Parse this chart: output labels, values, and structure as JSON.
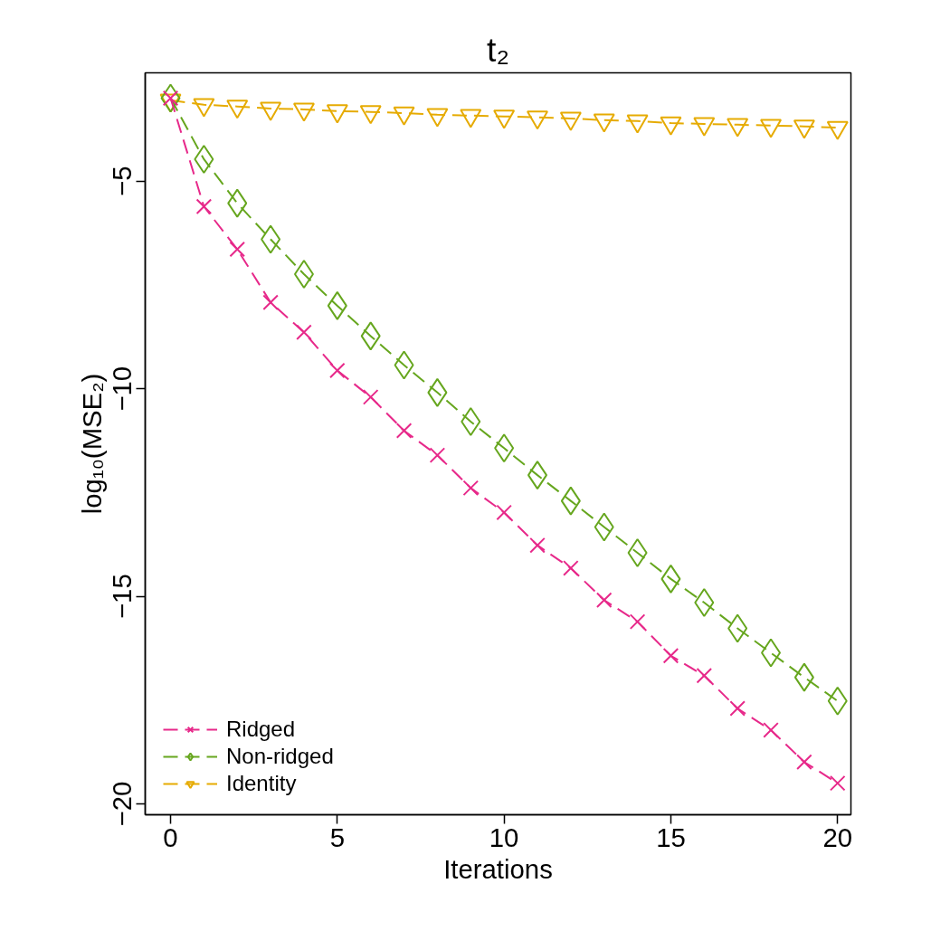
{
  "chart_data": {
    "type": "line",
    "title": "t₂",
    "xlabel": "Iterations",
    "ylabel": "log₁₀(MSE₂)",
    "x": [
      0,
      1,
      2,
      3,
      4,
      5,
      6,
      7,
      8,
      9,
      10,
      11,
      12,
      13,
      14,
      15,
      16,
      17,
      18,
      19,
      20
    ],
    "xlim": [
      -0.76,
      20.4
    ],
    "ylim": [
      -20.26,
      -2.39
    ],
    "xticks": [
      0,
      5,
      10,
      15,
      20
    ],
    "yticks": [
      -5,
      -10,
      -15,
      -20
    ],
    "grid": false,
    "legend": "bottom left",
    "line_style": "dashed",
    "series": [
      {
        "name": "Ridged",
        "color": "#e7298a",
        "marker": "cross",
        "values": [
          -3.0,
          -5.61,
          -6.64,
          -7.92,
          -8.64,
          -9.56,
          -10.2,
          -11.01,
          -11.6,
          -12.39,
          -12.98,
          -13.77,
          -14.32,
          -15.09,
          -15.61,
          -16.43,
          -16.91,
          -17.7,
          -18.22,
          -18.99,
          -19.5
        ]
      },
      {
        "name": "Non-ridged",
        "color": "#66a61e",
        "marker": "diamond",
        "values": [
          -3.0,
          -4.47,
          -5.53,
          -6.4,
          -7.24,
          -8.0,
          -8.73,
          -9.43,
          -10.09,
          -10.79,
          -11.43,
          -12.08,
          -12.7,
          -13.33,
          -13.95,
          -14.58,
          -15.15,
          -15.77,
          -16.36,
          -16.95,
          -17.52
        ]
      },
      {
        "name": "Identity",
        "color": "#e6ab02",
        "marker": "triangle_down",
        "values": [
          -3.05,
          -3.16,
          -3.2,
          -3.25,
          -3.27,
          -3.31,
          -3.33,
          -3.36,
          -3.4,
          -3.42,
          -3.44,
          -3.46,
          -3.49,
          -3.53,
          -3.55,
          -3.6,
          -3.62,
          -3.64,
          -3.66,
          -3.68,
          -3.71
        ]
      }
    ]
  }
}
